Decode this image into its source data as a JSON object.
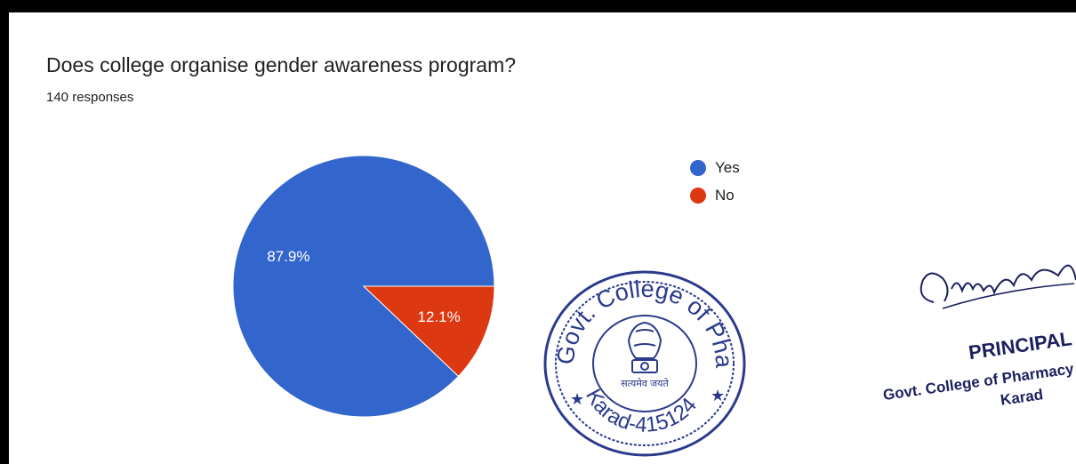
{
  "colors": {
    "yes": "#3366cc",
    "no": "#dc3912",
    "stamp": "#2b3a8c",
    "ink": "#1b1f5e"
  },
  "title": "Does college organise gender awareness program?",
  "subtitle": "140 responses",
  "chart_data": {
    "type": "pie",
    "title": "Does college organise gender awareness program?",
    "total_responses": 140,
    "slices": [
      {
        "label": "Yes",
        "percent": 87.9,
        "color": "#3366cc"
      },
      {
        "label": "No",
        "percent": 12.1,
        "color": "#dc3912"
      }
    ],
    "legend": [
      "Yes",
      "No"
    ],
    "legend_position": "right"
  },
  "stamp": {
    "top_text": "Govt. College of Pharmacy",
    "bottom_text": "Karad-415124",
    "motto": "सत्यमेव जयते"
  },
  "signature": {
    "title": "PRINCIPAL",
    "line1": "Govt. College of Pharmacy",
    "line2": "Karad"
  }
}
